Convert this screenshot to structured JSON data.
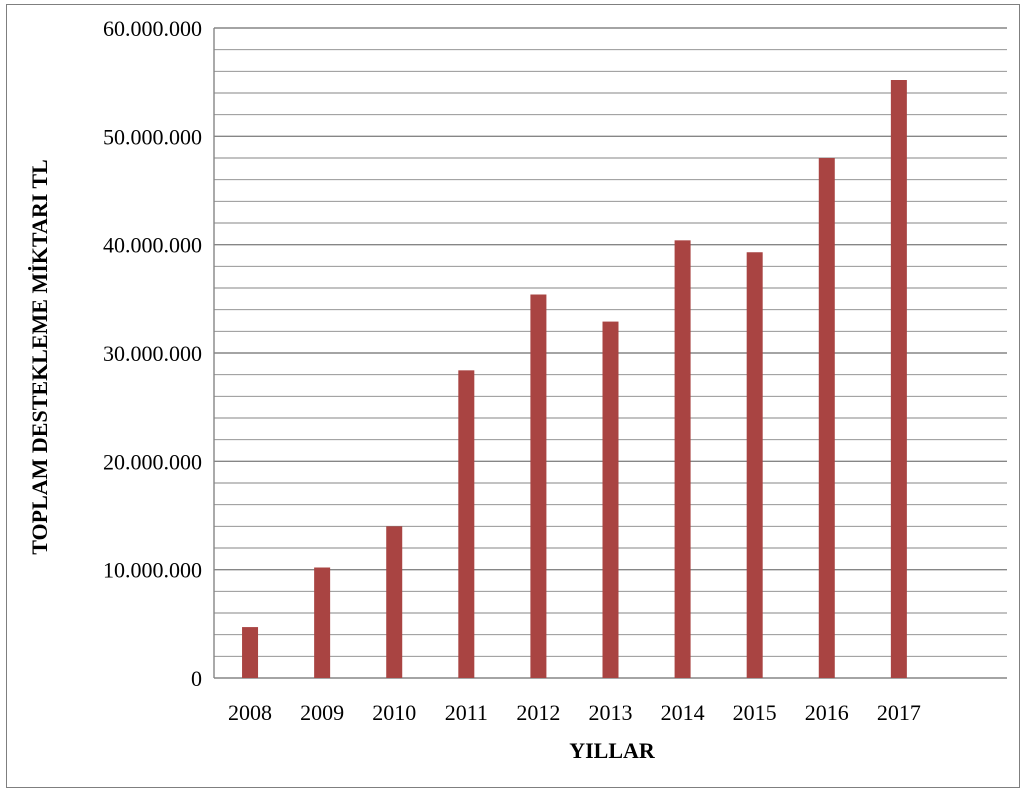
{
  "chart_data": {
    "type": "bar",
    "title": "",
    "xlabel": "YILLAR",
    "ylabel": "TOPLAM DESTEKLEME MİKTARI TL",
    "categories": [
      "2008",
      "2009",
      "2010",
      "2011",
      "2012",
      "2013",
      "2014",
      "2015",
      "2016",
      "2017"
    ],
    "series": [
      {
        "values": [
          4700000,
          10200000,
          14000000,
          28400000,
          35400000,
          32900000,
          40400000,
          39300000,
          48000000,
          55200000
        ],
        "color": "#a94442"
      }
    ],
    "ylim": [
      0,
      60000000
    ],
    "yticks": [
      "0",
      "10.000.000",
      "20.000.000",
      "30.000.000",
      "40.000.000",
      "50.000.000",
      "60.000.000"
    ],
    "major_step": 10000000,
    "minor_step": 2000000,
    "grid": true,
    "legend": "none",
    "colors": {
      "bar": "#a94442",
      "gridline": "#868686",
      "frame": "#7f7f7f"
    }
  }
}
